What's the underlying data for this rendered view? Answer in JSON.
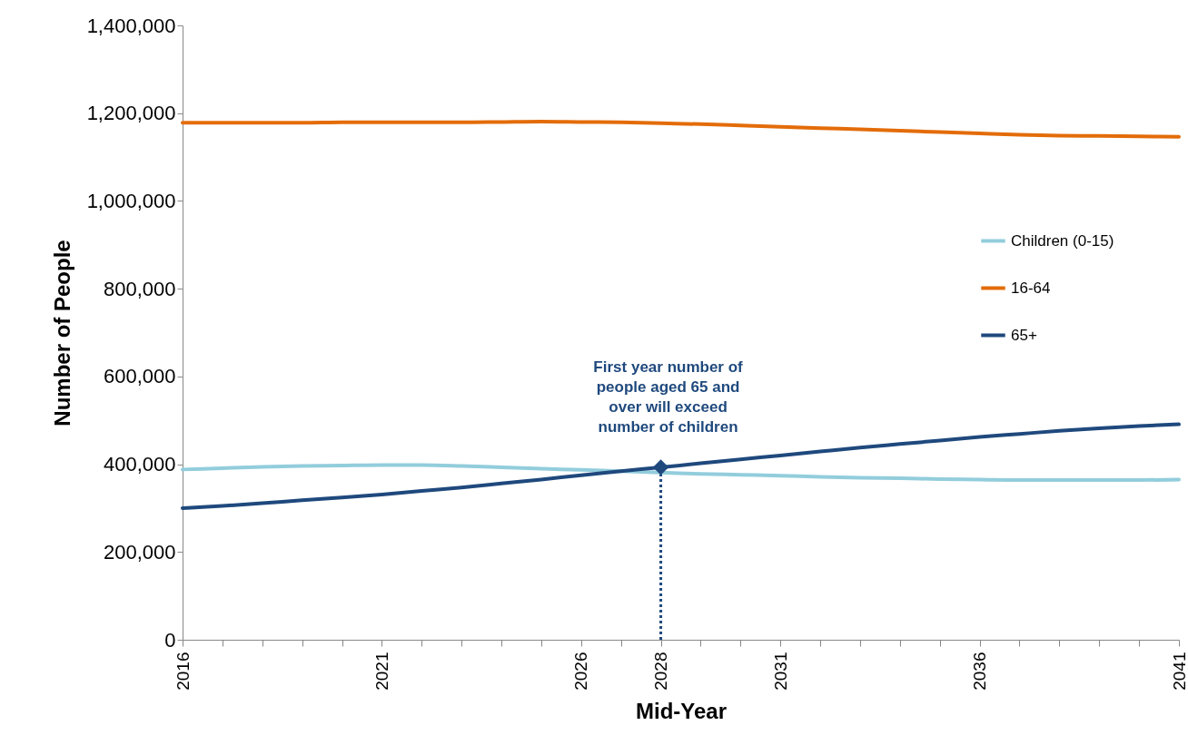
{
  "chart_data": {
    "type": "line",
    "xlabel": "Mid-Year",
    "ylabel": "Number of People",
    "x": [
      2016,
      2017,
      2018,
      2019,
      2020,
      2021,
      2022,
      2023,
      2024,
      2025,
      2026,
      2027,
      2028,
      2029,
      2030,
      2031,
      2032,
      2033,
      2034,
      2035,
      2036,
      2037,
      2038,
      2039,
      2040,
      2041
    ],
    "series": [
      {
        "name": "Children (0-15)",
        "color": "#92cddc",
        "values": [
          388000,
          391000,
          394000,
          396000,
          397000,
          398000,
          398000,
          396000,
          393000,
          390000,
          387000,
          384000,
          381000,
          378000,
          376000,
          374000,
          371000,
          369000,
          368000,
          366000,
          365000,
          364000,
          364000,
          364000,
          364000,
          365000
        ]
      },
      {
        "name": "16-64",
        "color": "#e36c09",
        "values": [
          1178000,
          1178000,
          1178000,
          1178000,
          1179000,
          1179000,
          1179000,
          1179000,
          1180000,
          1181000,
          1180000,
          1179000,
          1177000,
          1175000,
          1172000,
          1169000,
          1166000,
          1163000,
          1160000,
          1157000,
          1154000,
          1151000,
          1149000,
          1148000,
          1147000,
          1146000
        ]
      },
      {
        "name": "65+",
        "color": "#1f497d",
        "values": [
          300000,
          305000,
          311000,
          318000,
          324000,
          331000,
          339000,
          347000,
          356000,
          365000,
          375000,
          384000,
          393000,
          402000,
          411000,
          420000,
          429000,
          438000,
          446000,
          454000,
          462000,
          469000,
          476000,
          482000,
          487000,
          491000
        ]
      },
      {
        "type": "scatter",
        "color": "#1f497d",
        "marker": "diamond",
        "x": [
          2028
        ],
        "values": [
          393000
        ]
      }
    ],
    "xlim": [
      2016,
      2041
    ],
    "xticks": [
      2016,
      {
        "value": 2017,
        "label": null
      },
      {
        "value": 2018,
        "label": null
      },
      {
        "value": 2019,
        "label": null
      },
      {
        "value": 2020,
        "label": null
      },
      2021,
      {
        "value": 2022,
        "label": null
      },
      {
        "value": 2023,
        "label": null
      },
      {
        "value": 2024,
        "label": null
      },
      {
        "value": 2025,
        "label": null
      },
      2026,
      {
        "value": 2027,
        "label": null
      },
      2028,
      {
        "value": 2029,
        "label": null
      },
      {
        "value": 2030,
        "label": null
      },
      2031,
      {
        "value": 2032,
        "label": null
      },
      {
        "value": 2033,
        "label": null
      },
      {
        "value": 2034,
        "label": null
      },
      {
        "value": 2035,
        "label": null
      },
      2036,
      {
        "value": 2037,
        "label": null
      },
      {
        "value": 2038,
        "label": null
      },
      {
        "value": 2039,
        "label": null
      },
      {
        "value": 2040,
        "label": null
      },
      2041
    ],
    "ylim": [
      0,
      1400000
    ],
    "yticks": [
      0,
      {
        "value": 200000,
        "label": "200,000"
      },
      {
        "value": 400000,
        "label": "400,000"
      },
      {
        "value": 600000,
        "label": "600,000"
      },
      {
        "value": 800000,
        "label": "800,000"
      },
      {
        "value": 1000000,
        "label": "1,000,000"
      },
      {
        "value": 1200000,
        "label": "1,200,000"
      },
      {
        "value": 1400000,
        "label": "1,400,000"
      }
    ],
    "ref_lines": [
      {
        "axis": "x",
        "value": 2028,
        "color": "#1f497d",
        "line_style": "dotted"
      }
    ],
    "annotations": [
      {
        "text": "First year number of\npeople aged 65 and\nover will exceed\nnumber of children",
        "x": 2028,
        "y": 393000
      }
    ],
    "grid": false,
    "legend": "right"
  }
}
